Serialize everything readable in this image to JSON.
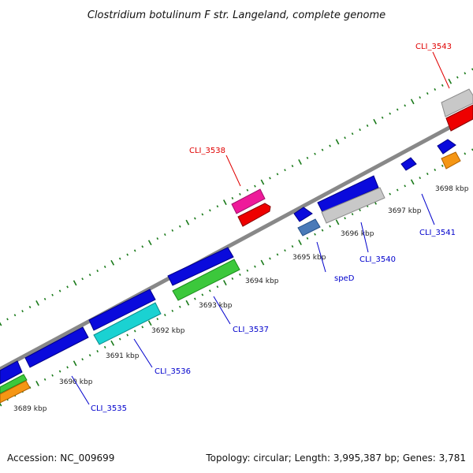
{
  "title": "Clostridium botulinum F str. Langeland, complete genome",
  "footer": {
    "accession": "Accession: NC_009699",
    "topology": "Topology: circular; Length: 3,995,387 bp; Genes: 3,781"
  },
  "ticks": {
    "kbp_labels": [
      "3689 kbp",
      "3690 kbp",
      "3691 kbp",
      "3692 kbp",
      "3693 kbp",
      "3694 kbp",
      "3695 kbp",
      "3696 kbp",
      "3697 kbp",
      "3698 kbp"
    ]
  },
  "genes": {
    "labels": [
      "CLI_3543",
      "CLI_3538",
      "CLI_3541",
      "CLI_3540",
      "speD",
      "CLI_3537",
      "CLI_3536",
      "CLI_3535"
    ]
  },
  "colors": {
    "backbone": "#888888",
    "tick": "#1a7a1a",
    "label_red": "#e00000",
    "label_blue": "#0000cc",
    "gene_blue": "#0a0adc",
    "gene_red": "#ee0000",
    "gene_grey": "#c8c8c8",
    "gene_magenta": "#ee1a9a",
    "gene_green": "#3cc83c",
    "gene_cyan": "#1ad2d2",
    "gene_orange": "#f59614",
    "gene_steel": "#4a7ab8"
  }
}
